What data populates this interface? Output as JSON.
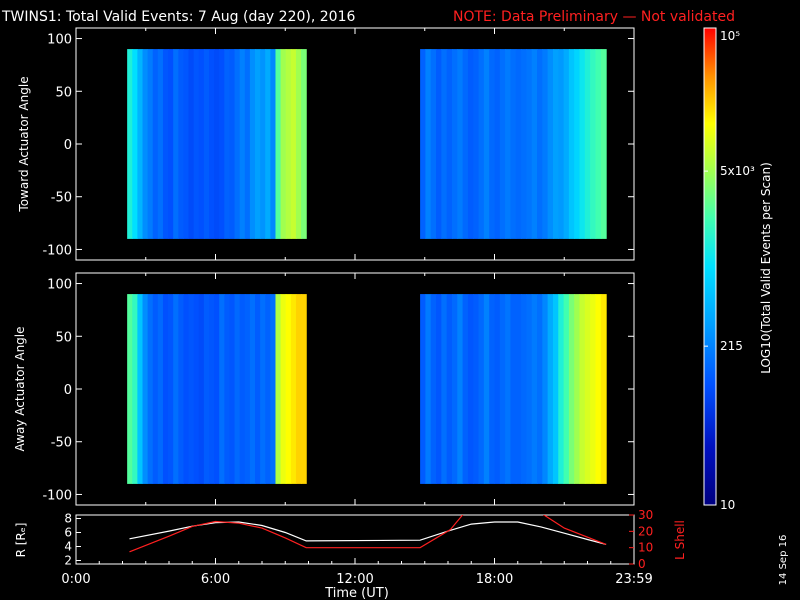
{
  "header": {
    "title": "TWINS1: Total Valid Events:  7 Aug (day 220), 2016",
    "note": "NOTE: Data Preliminary — Not validated",
    "title_color": "#ffffff",
    "note_color": "#ff2020"
  },
  "stamp": "14 Sep 16",
  "chart_data": [
    {
      "type": "heatmap",
      "panel": "toward",
      "ylabel": "Toward Actuator Angle",
      "ylim": [
        -110,
        110
      ],
      "yticks": [
        100,
        50,
        0,
        -50,
        -100
      ],
      "xlim": [
        0,
        24
      ],
      "blocks": [
        {
          "x_start": 2.2,
          "x_end": 9.9,
          "y_min": -90,
          "y_max": 90,
          "profile": [
            0.55,
            0.5,
            0.42,
            0.35,
            0.32,
            0.28,
            0.3,
            0.26,
            0.25,
            0.3,
            0.27,
            0.26,
            0.24,
            0.26,
            0.25,
            0.27,
            0.25,
            0.24,
            0.25,
            0.28,
            0.27,
            0.3,
            0.33,
            0.3,
            0.35,
            0.38,
            0.36,
            0.4,
            0.34,
            0.62,
            0.7,
            0.72,
            0.74,
            0.7,
            0.66
          ]
        },
        {
          "x_start": 14.8,
          "x_end": 22.8,
          "y_min": -90,
          "y_max": 90,
          "profile": [
            0.28,
            0.33,
            0.3,
            0.27,
            0.3,
            0.28,
            0.3,
            0.32,
            0.29,
            0.27,
            0.28,
            0.3,
            0.33,
            0.29,
            0.28,
            0.3,
            0.32,
            0.3,
            0.29,
            0.3,
            0.31,
            0.33,
            0.3,
            0.32,
            0.35,
            0.38,
            0.37,
            0.4,
            0.45,
            0.48,
            0.52,
            0.55,
            0.58,
            0.6,
            0.62
          ]
        }
      ]
    },
    {
      "type": "heatmap",
      "panel": "away",
      "ylabel": "Away Actuator Angle",
      "ylim": [
        -110,
        110
      ],
      "yticks": [
        100,
        50,
        0,
        -50,
        -100
      ],
      "xlim": [
        0,
        24
      ],
      "blocks": [
        {
          "x_start": 2.2,
          "x_end": 9.9,
          "y_min": -90,
          "y_max": 90,
          "profile": [
            0.62,
            0.58,
            0.45,
            0.35,
            0.3,
            0.27,
            0.29,
            0.25,
            0.26,
            0.3,
            0.27,
            0.25,
            0.26,
            0.25,
            0.24,
            0.27,
            0.26,
            0.25,
            0.3,
            0.27,
            0.26,
            0.29,
            0.27,
            0.28,
            0.3,
            0.27,
            0.3,
            0.28,
            0.3,
            0.72,
            0.78,
            0.8,
            0.82,
            0.84,
            0.84
          ]
        },
        {
          "x_start": 14.8,
          "x_end": 22.8,
          "y_min": -90,
          "y_max": 90,
          "profile": [
            0.27,
            0.32,
            0.28,
            0.26,
            0.3,
            0.27,
            0.29,
            0.33,
            0.28,
            0.26,
            0.27,
            0.29,
            0.33,
            0.28,
            0.27,
            0.29,
            0.31,
            0.28,
            0.28,
            0.29,
            0.3,
            0.32,
            0.3,
            0.34,
            0.4,
            0.45,
            0.55,
            0.6,
            0.66,
            0.7,
            0.74,
            0.76,
            0.78,
            0.8,
            0.82
          ]
        }
      ]
    },
    {
      "type": "line",
      "panel": "orbit",
      "xlabel": "Time (UT)",
      "xlim": [
        0,
        24
      ],
      "xticks": [
        "0:00",
        "6:00",
        "12:00",
        "18:00",
        "23:59"
      ],
      "xtick_values": [
        0,
        6,
        12,
        18,
        24
      ],
      "y_left": {
        "label": "R [Rₑ]",
        "ylim": [
          1.5,
          8.5
        ],
        "ticks": [
          2,
          4,
          6,
          8
        ],
        "color": "#ffffff"
      },
      "y_right": {
        "label": "L Shell",
        "ylim": [
          0,
          30
        ],
        "ticks": [
          0,
          10,
          20,
          30
        ],
        "color": "#ff2020"
      },
      "series": [
        {
          "axis": "left",
          "color": "#ffffff",
          "x": [
            2.3,
            4,
            5,
            6,
            7,
            8,
            9,
            9.9,
            14.8,
            16,
            17,
            18,
            19,
            20,
            21,
            22,
            22.8
          ],
          "y": [
            5.1,
            6.2,
            6.9,
            7.4,
            7.5,
            7.0,
            6.0,
            4.8,
            4.9,
            6.2,
            7.2,
            7.5,
            7.5,
            6.8,
            5.9,
            5.0,
            4.3
          ]
        },
        {
          "axis": "right",
          "color": "#ff2020",
          "x": [
            2.3,
            4,
            5,
            6,
            7,
            8,
            9,
            9.9,
            14.8,
            16.1,
            16.8,
            19.8,
            21,
            22.8
          ],
          "y": [
            7.5,
            17,
            23,
            26,
            25,
            22,
            16,
            10,
            10,
            21,
            33,
            33,
            22,
            12
          ]
        }
      ]
    }
  ],
  "colorbar": {
    "label": "LOG10(Total Valid Events per Scan)",
    "ticks": [
      {
        "text": "10",
        "frac": 0.0
      },
      {
        "text": "215",
        "frac": 0.333
      },
      {
        "text": "5x10³",
        "frac": 0.7
      },
      {
        "text": "10⁵",
        "frac": 1.0
      }
    ]
  }
}
